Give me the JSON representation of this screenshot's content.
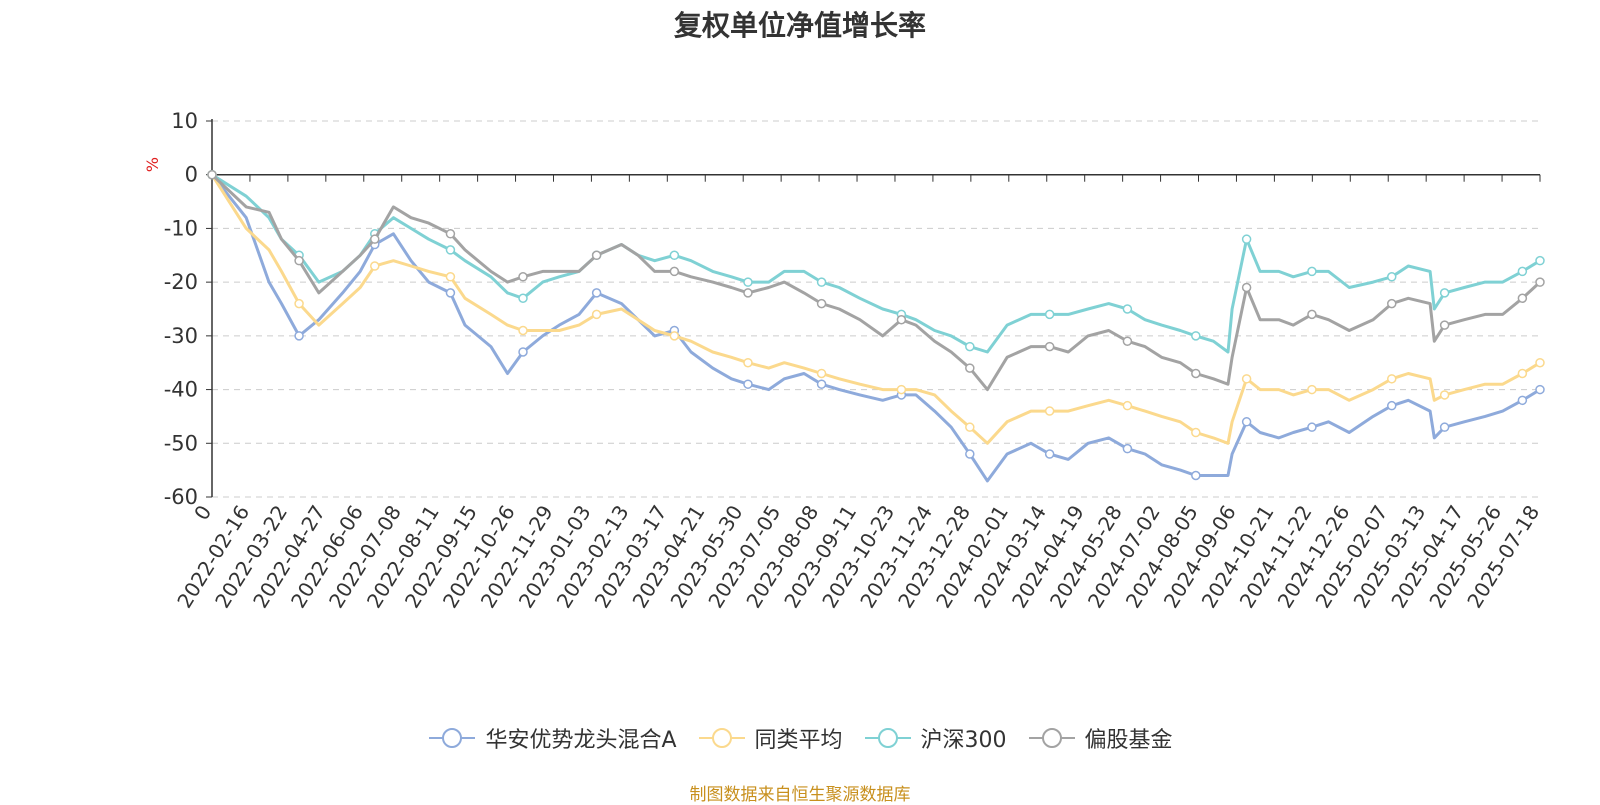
{
  "chart_data": {
    "type": "line",
    "title": "复权单位净值增长率",
    "ylabel": "%",
    "ylim": [
      -60,
      10
    ],
    "yticks": [
      10,
      0,
      -10,
      -20,
      -30,
      -40,
      -50,
      -60
    ],
    "x_range": [
      "2022-01-14",
      "2025-07-18"
    ],
    "x_tick_labels": [
      "0",
      "2022-02-16",
      "2022-03-22",
      "2022-04-27",
      "2022-06-06",
      "2022-07-08",
      "2022-08-11",
      "2022-09-15",
      "2022-10-26",
      "2022-11-29",
      "2023-01-03",
      "2023-02-13",
      "2023-03-17",
      "2023-04-21",
      "2023-05-30",
      "2023-07-05",
      "2023-08-08",
      "2023-09-11",
      "2023-10-23",
      "2023-11-24",
      "2023-12-28",
      "2024-02-01",
      "2024-03-14",
      "2024-04-19",
      "2024-05-28",
      "2024-07-02",
      "2024-08-05",
      "2024-09-06",
      "2024-10-21",
      "2024-11-22",
      "2024-12-26",
      "2025-02-07",
      "2025-03-13",
      "2025-04-17",
      "2025-05-26",
      "2025-07-18"
    ],
    "grid": "horizontal-dashed",
    "legend_position": "bottom-center",
    "series": [
      {
        "name": "华安优势龙头混合A",
        "color": "#8eaadb",
        "x": [
          "2022-01-14",
          "2022-02-16",
          "2022-03-10",
          "2022-03-22",
          "2022-04-08",
          "2022-04-27",
          "2022-05-20",
          "2022-06-06",
          "2022-06-20",
          "2022-07-08",
          "2022-07-25",
          "2022-08-11",
          "2022-09-01",
          "2022-09-15",
          "2022-10-10",
          "2022-10-26",
          "2022-11-10",
          "2022-11-29",
          "2022-12-15",
          "2023-01-03",
          "2023-01-20",
          "2023-02-13",
          "2023-03-01",
          "2023-03-17",
          "2023-04-05",
          "2023-04-21",
          "2023-05-12",
          "2023-05-30",
          "2023-06-15",
          "2023-07-05",
          "2023-07-20",
          "2023-08-08",
          "2023-08-25",
          "2023-09-11",
          "2023-10-01",
          "2023-10-23",
          "2023-11-10",
          "2023-11-24",
          "2023-12-12",
          "2023-12-28",
          "2024-01-15",
          "2024-02-01",
          "2024-02-20",
          "2024-03-14",
          "2024-04-01",
          "2024-04-19",
          "2024-05-08",
          "2024-05-28",
          "2024-06-15",
          "2024-07-02",
          "2024-07-18",
          "2024-08-05",
          "2024-08-20",
          "2024-09-06",
          "2024-09-20",
          "2024-09-24",
          "2024-10-08",
          "2024-10-21",
          "2024-11-08",
          "2024-11-22",
          "2024-12-10",
          "2024-12-26",
          "2025-01-15",
          "2025-02-07",
          "2025-02-25",
          "2025-03-13",
          "2025-04-03",
          "2025-04-07",
          "2025-04-17",
          "2025-05-06",
          "2025-05-26",
          "2025-06-12",
          "2025-07-01",
          "2025-07-18"
        ],
        "values": [
          0,
          -8,
          -20,
          -24,
          -30,
          -27,
          -22,
          -18,
          -13,
          -11,
          -16,
          -20,
          -22,
          -28,
          -32,
          -37,
          -33,
          -30,
          -28,
          -26,
          -22,
          -24,
          -27,
          -30,
          -29,
          -33,
          -36,
          -38,
          -39,
          -40,
          -38,
          -37,
          -39,
          -40,
          -41,
          -42,
          -41,
          -41,
          -44,
          -47,
          -52,
          -57,
          -52,
          -50,
          -52,
          -53,
          -50,
          -49,
          -51,
          -52,
          -54,
          -55,
          -56,
          -56,
          -56,
          -52,
          -46,
          -48,
          -49,
          -48,
          -47,
          -46,
          -48,
          -45,
          -43,
          -42,
          -44,
          -49,
          -47,
          -46,
          -45,
          -44,
          -42,
          -40
        ]
      },
      {
        "name": "同类平均",
        "color": "#fbd98d",
        "x": [
          "2022-01-14",
          "2022-02-16",
          "2022-03-10",
          "2022-03-22",
          "2022-04-08",
          "2022-04-27",
          "2022-05-20",
          "2022-06-06",
          "2022-06-20",
          "2022-07-08",
          "2022-07-25",
          "2022-08-11",
          "2022-09-01",
          "2022-09-15",
          "2022-10-10",
          "2022-10-26",
          "2022-11-10",
          "2022-11-29",
          "2022-12-15",
          "2023-01-03",
          "2023-01-20",
          "2023-02-13",
          "2023-03-01",
          "2023-03-17",
          "2023-04-05",
          "2023-04-21",
          "2023-05-12",
          "2023-05-30",
          "2023-06-15",
          "2023-07-05",
          "2023-07-20",
          "2023-08-08",
          "2023-08-25",
          "2023-09-11",
          "2023-10-01",
          "2023-10-23",
          "2023-11-10",
          "2023-11-24",
          "2023-12-12",
          "2023-12-28",
          "2024-01-15",
          "2024-02-01",
          "2024-02-20",
          "2024-03-14",
          "2024-04-01",
          "2024-04-19",
          "2024-05-08",
          "2024-05-28",
          "2024-06-15",
          "2024-07-02",
          "2024-07-18",
          "2024-08-05",
          "2024-08-20",
          "2024-09-06",
          "2024-09-20",
          "2024-09-24",
          "2024-10-08",
          "2024-10-21",
          "2024-11-08",
          "2024-11-22",
          "2024-12-10",
          "2024-12-26",
          "2025-01-15",
          "2025-02-07",
          "2025-02-25",
          "2025-03-13",
          "2025-04-03",
          "2025-04-07",
          "2025-04-17",
          "2025-05-06",
          "2025-05-26",
          "2025-06-12",
          "2025-07-01",
          "2025-07-18"
        ],
        "values": [
          0,
          -10,
          -14,
          -18,
          -24,
          -28,
          -24,
          -21,
          -17,
          -16,
          -17,
          -18,
          -19,
          -23,
          -26,
          -28,
          -29,
          -29,
          -29,
          -28,
          -26,
          -25,
          -27,
          -29,
          -30,
          -31,
          -33,
          -34,
          -35,
          -36,
          -35,
          -36,
          -37,
          -38,
          -39,
          -40,
          -40,
          -40,
          -41,
          -44,
          -47,
          -50,
          -46,
          -44,
          -44,
          -44,
          -43,
          -42,
          -43,
          -44,
          -45,
          -46,
          -48,
          -49,
          -50,
          -46,
          -38,
          -40,
          -40,
          -41,
          -40,
          -40,
          -42,
          -40,
          -38,
          -37,
          -38,
          -42,
          -41,
          -40,
          -39,
          -39,
          -37,
          -35
        ]
      },
      {
        "name": "沪深300",
        "color": "#7fd1d4",
        "x": [
          "2022-01-14",
          "2022-02-16",
          "2022-03-10",
          "2022-03-22",
          "2022-04-08",
          "2022-04-27",
          "2022-05-20",
          "2022-06-06",
          "2022-06-20",
          "2022-07-08",
          "2022-07-25",
          "2022-08-11",
          "2022-09-01",
          "2022-09-15",
          "2022-10-10",
          "2022-10-26",
          "2022-11-10",
          "2022-11-29",
          "2022-12-15",
          "2023-01-03",
          "2023-01-20",
          "2023-02-13",
          "2023-03-01",
          "2023-03-17",
          "2023-04-05",
          "2023-04-21",
          "2023-05-12",
          "2023-05-30",
          "2023-06-15",
          "2023-07-05",
          "2023-07-20",
          "2023-08-08",
          "2023-08-25",
          "2023-09-11",
          "2023-10-01",
          "2023-10-23",
          "2023-11-10",
          "2023-11-24",
          "2023-12-12",
          "2023-12-28",
          "2024-01-15",
          "2024-02-01",
          "2024-02-20",
          "2024-03-14",
          "2024-04-01",
          "2024-04-19",
          "2024-05-08",
          "2024-05-28",
          "2024-06-15",
          "2024-07-02",
          "2024-07-18",
          "2024-08-05",
          "2024-08-20",
          "2024-09-06",
          "2024-09-20",
          "2024-09-24",
          "2024-10-08",
          "2024-10-21",
          "2024-11-08",
          "2024-11-22",
          "2024-12-10",
          "2024-12-26",
          "2025-01-15",
          "2025-02-07",
          "2025-02-25",
          "2025-03-13",
          "2025-04-03",
          "2025-04-07",
          "2025-04-17",
          "2025-05-06",
          "2025-05-26",
          "2025-06-12",
          "2025-07-01",
          "2025-07-18"
        ],
        "values": [
          0,
          -4,
          -8,
          -12,
          -15,
          -20,
          -18,
          -15,
          -11,
          -8,
          -10,
          -12,
          -14,
          -16,
          -19,
          -22,
          -23,
          -20,
          -19,
          -18,
          -15,
          -13,
          -15,
          -16,
          -15,
          -16,
          -18,
          -19,
          -20,
          -20,
          -18,
          -18,
          -20,
          -21,
          -23,
          -25,
          -26,
          -27,
          -29,
          -30,
          -32,
          -33,
          -28,
          -26,
          -26,
          -26,
          -25,
          -24,
          -25,
          -27,
          -28,
          -29,
          -30,
          -31,
          -33,
          -25,
          -12,
          -18,
          -18,
          -19,
          -18,
          -18,
          -21,
          -20,
          -19,
          -17,
          -18,
          -25,
          -22,
          -21,
          -20,
          -20,
          -18,
          -16
        ]
      },
      {
        "name": "偏股基金",
        "color": "#a3a3a3",
        "x": [
          "2022-01-14",
          "2022-02-16",
          "2022-03-10",
          "2022-03-22",
          "2022-04-08",
          "2022-04-27",
          "2022-05-20",
          "2022-06-06",
          "2022-06-20",
          "2022-07-08",
          "2022-07-25",
          "2022-08-11",
          "2022-09-01",
          "2022-09-15",
          "2022-10-10",
          "2022-10-26",
          "2022-11-10",
          "2022-11-29",
          "2022-12-15",
          "2023-01-03",
          "2023-01-20",
          "2023-02-13",
          "2023-03-01",
          "2023-03-17",
          "2023-04-05",
          "2023-04-21",
          "2023-05-12",
          "2023-05-30",
          "2023-06-15",
          "2023-07-05",
          "2023-07-20",
          "2023-08-08",
          "2023-08-25",
          "2023-09-11",
          "2023-10-01",
          "2023-10-23",
          "2023-11-10",
          "2023-11-24",
          "2023-12-12",
          "2023-12-28",
          "2024-01-15",
          "2024-02-01",
          "2024-02-20",
          "2024-03-14",
          "2024-04-01",
          "2024-04-19",
          "2024-05-08",
          "2024-05-28",
          "2024-06-15",
          "2024-07-02",
          "2024-07-18",
          "2024-08-05",
          "2024-08-20",
          "2024-09-06",
          "2024-09-20",
          "2024-09-24",
          "2024-10-08",
          "2024-10-21",
          "2024-11-08",
          "2024-11-22",
          "2024-12-10",
          "2024-12-26",
          "2025-01-15",
          "2025-02-07",
          "2025-02-25",
          "2025-03-13",
          "2025-04-03",
          "2025-04-07",
          "2025-04-17",
          "2025-05-06",
          "2025-05-26",
          "2025-06-12",
          "2025-07-01",
          "2025-07-18"
        ],
        "values": [
          0,
          -6,
          -7,
          -12,
          -16,
          -22,
          -18,
          -15,
          -12,
          -6,
          -8,
          -9,
          -11,
          -14,
          -18,
          -20,
          -19,
          -18,
          -18,
          -18,
          -15,
          -13,
          -15,
          -18,
          -18,
          -19,
          -20,
          -21,
          -22,
          -21,
          -20,
          -22,
          -24,
          -25,
          -27,
          -30,
          -27,
          -28,
          -31,
          -33,
          -36,
          -40,
          -34,
          -32,
          -32,
          -33,
          -30,
          -29,
          -31,
          -32,
          -34,
          -35,
          -37,
          -38,
          -39,
          -34,
          -21,
          -27,
          -27,
          -28,
          -26,
          -27,
          -29,
          -27,
          -24,
          -23,
          -24,
          -31,
          -28,
          -27,
          -26,
          -26,
          -23,
          -20
        ]
      }
    ]
  },
  "legend": {
    "items": [
      "华安优势龙头混合A",
      "同类平均",
      "沪深300",
      "偏股基金"
    ]
  },
  "source_note": "制图数据来自恒生聚源数据库"
}
